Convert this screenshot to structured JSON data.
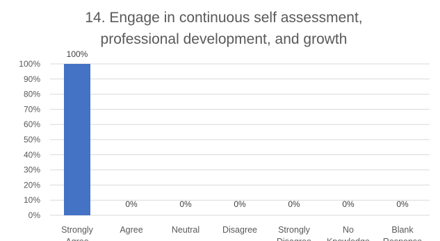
{
  "chart_data": {
    "type": "bar",
    "title_lines": [
      "14.  Engage in continuous self assessment,",
      "professional development, and growth"
    ],
    "categories": [
      [
        "Strongly",
        "Agree"
      ],
      [
        "Agree"
      ],
      [
        "Neutral"
      ],
      [
        "Disagree"
      ],
      [
        "Strongly",
        "Disagree"
      ],
      [
        "No",
        "Knowledge"
      ],
      [
        "Blank",
        "Response"
      ]
    ],
    "values": [
      100,
      0,
      0,
      0,
      0,
      0,
      0
    ],
    "data_labels": [
      "100%",
      "0%",
      "0%",
      "0%",
      "0%",
      "0%",
      "0%"
    ],
    "y_ticks": [
      "0%",
      "10%",
      "20%",
      "30%",
      "40%",
      "50%",
      "60%",
      "70%",
      "80%",
      "90%",
      "100%"
    ],
    "ylim": [
      0,
      100
    ],
    "grid": true,
    "legend": "none",
    "bar_color": "#4472c4"
  }
}
